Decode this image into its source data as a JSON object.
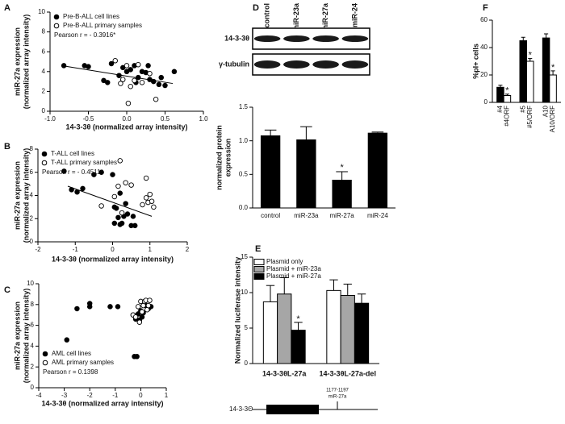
{
  "chart_data": [
    {
      "type": "scatter",
      "panel": "A",
      "xlabel": "14-3-3θ (normalized array intensity)",
      "ylabel": [
        "miR-27a expression",
        "(normalized array intensity)"
      ],
      "xlim": [
        -1,
        1
      ],
      "xticks": [
        {
          "value": -1,
          "label": "-1.0"
        },
        -0.5,
        {
          "value": 0,
          "label": "0.0"
        },
        0.5,
        {
          "value": 1,
          "label": "1.0"
        }
      ],
      "ylim": [
        0,
        10
      ],
      "yticks": [
        0,
        2,
        4,
        6,
        8,
        10
      ],
      "legend": "upper left",
      "annotation": "Pearson r = - 0.3916*",
      "series": [
        {
          "name": "Pre-B-ALL cell lines",
          "color": "#000000",
          "x": [
            -0.82,
            -0.55,
            -0.5,
            -0.3,
            -0.25,
            -0.1,
            -0.05,
            0.0,
            0.05,
            0.1,
            0.15,
            0.2,
            0.25,
            0.3,
            0.35,
            0.42,
            0.45,
            0.5,
            0.62,
            0.12,
            -0.2,
            0.28
          ],
          "y": [
            4.6,
            4.6,
            4.5,
            3.1,
            2.9,
            3.6,
            4.4,
            4.0,
            4.2,
            4.6,
            3.4,
            4.0,
            3.9,
            3.2,
            3.0,
            2.7,
            3.4,
            2.6,
            4.0,
            2.9,
            4.8,
            4.6
          ]
        },
        {
          "name": "Pre-B-ALL primary samples",
          "color": "#ffffff",
          "x": [
            -0.15,
            -0.05,
            0.0,
            0.02,
            0.1,
            0.05,
            0.15,
            0.2,
            0.38,
            0.3,
            -0.08
          ],
          "y": [
            5.1,
            3.2,
            4.6,
            0.8,
            3.1,
            2.5,
            4.7,
            2.9,
            1.2,
            3.8,
            2.8
          ]
        }
      ],
      "fit": {
        "x": [
          -0.85,
          0.6
        ],
        "y": [
          4.6,
          2.8
        ]
      }
    },
    {
      "type": "scatter",
      "panel": "B",
      "xlabel": "14-3-3θ (normalized array intensity)",
      "ylabel": [
        "miR-27a expression",
        "(normalized array intensity)"
      ],
      "xlim": [
        -2,
        2
      ],
      "xticks": [
        -2,
        -1,
        0,
        1,
        2
      ],
      "ylim": [
        0,
        8
      ],
      "yticks": [
        0,
        2,
        4,
        6,
        8
      ],
      "legend": "upper left",
      "annotation": "Pearson r = - 0.4511*",
      "series": [
        {
          "name": "T-ALL cell lines",
          "color": "#000000",
          "x": [
            -1.3,
            -1.1,
            -0.95,
            -0.8,
            -0.5,
            -0.3,
            0.0,
            0.05,
            0.1,
            0.15,
            0.2,
            0.25,
            0.3,
            0.35,
            0.4,
            0.5,
            0.6,
            0.05,
            0.55,
            0.2
          ],
          "y": [
            6.1,
            4.5,
            4.3,
            4.6,
            5.8,
            6.0,
            5.8,
            3.0,
            2.9,
            2.1,
            1.5,
            1.6,
            2.2,
            3.3,
            2.4,
            1.4,
            1.4,
            1.6,
            2.2,
            4.2
          ]
        },
        {
          "name": "T-ALL primary samples",
          "color": "#ffffff",
          "x": [
            -0.3,
            0.2,
            0.05,
            0.35,
            0.5,
            0.15,
            0.8,
            0.9,
            0.95,
            1.0,
            1.05,
            1.1,
            0.25,
            0.9
          ],
          "y": [
            3.1,
            7.0,
            3.9,
            5.1,
            4.9,
            4.8,
            3.2,
            3.8,
            3.4,
            4.1,
            3.5,
            3.0,
            2.5,
            5.5
          ]
        }
      ],
      "fit": {
        "x": [
          -1.2,
          1.05
        ],
        "y": [
          4.8,
          2.2
        ]
      }
    },
    {
      "type": "scatter",
      "panel": "C",
      "xlabel": "14-3-3θ (normalized array intensity)",
      "ylabel": [
        "miR-27a expression",
        "(normalized array intensity)"
      ],
      "xlim": [
        -4,
        1
      ],
      "xticks": [
        -4,
        -3,
        -2,
        -1,
        0,
        1
      ],
      "ylim": [
        0,
        10
      ],
      "yticks": [
        0,
        2,
        4,
        6,
        8,
        10
      ],
      "legend": "lower left",
      "annotation": "Pearson r = 0.1398",
      "series": [
        {
          "name": "AML cell lines",
          "color": "#000000",
          "x": [
            -2.9,
            -2.5,
            -2.0,
            -2.0,
            -1.2,
            -0.9,
            -0.3,
            -0.2,
            -0.25,
            -0.15,
            -0.2,
            -0.1,
            0.0,
            0.1,
            0.2,
            0.3,
            0.4,
            0.05,
            -0.05
          ],
          "y": [
            4.6,
            7.6,
            7.8,
            8.1,
            7.8,
            7.8,
            7.0,
            6.9,
            3.0,
            3.0,
            6.6,
            7.1,
            7.4,
            7.2,
            7.9,
            7.6,
            7.8,
            6.8,
            6.5
          ]
        },
        {
          "name": "AML primary samples",
          "color": "#ffffff",
          "x": [
            -0.3,
            -0.1,
            0.0,
            0.1,
            0.15,
            0.2,
            0.25,
            0.3,
            0.35,
            -0.2,
            0.05,
            -0.05
          ],
          "y": [
            7.0,
            7.8,
            8.3,
            7.9,
            8.3,
            8.4,
            7.5,
            7.9,
            8.4,
            6.8,
            7.3,
            6.3
          ]
        }
      ]
    },
    {
      "type": "bar",
      "panel": "D",
      "ylabel": [
        "normalized protein",
        "expression"
      ],
      "blot": {
        "lanes": [
          "control",
          "miR-23a",
          "miR-27a",
          "miR-24"
        ],
        "rows": [
          "14-3-3θ",
          "γ-tubulin"
        ]
      },
      "categories": [
        "control",
        "miR-23a",
        "miR-27a",
        "miR-24"
      ],
      "values": [
        1.08,
        1.02,
        0.42,
        1.12
      ],
      "errors": [
        0.08,
        0.19,
        0.12,
        0.01
      ],
      "color": "#000000",
      "ylim": [
        0,
        1.5
      ],
      "yticks": [
        {
          "value": 0,
          "label": "0.0"
        },
        0.5,
        {
          "value": 1,
          "label": "1.0"
        },
        1.5
      ],
      "annotations": [
        {
          "text": "*",
          "index": 2
        }
      ]
    },
    {
      "type": "grouped-bar",
      "panel": "E",
      "ylabel": [
        "Normalized luciferase intensity"
      ],
      "categories": [
        "14-3-3θL-27a",
        "14-3-3θL-27a-del"
      ],
      "series": [
        {
          "name": "Plasmid only",
          "color": "#ffffff",
          "values": [
            8.7,
            10.3
          ],
          "errors": [
            2.3,
            1.5
          ]
        },
        {
          "name": "Plasmid + miR-23a",
          "color": "#a6a6a6",
          "values": [
            9.8,
            9.6
          ],
          "errors": [
            2.3,
            1.6
          ]
        },
        {
          "name": "Plasmid + miR-27a",
          "color": "#000000",
          "values": [
            4.7,
            8.5
          ],
          "errors": [
            1.1,
            1.3
          ]
        }
      ],
      "ylim": [
        0,
        15
      ],
      "yticks": [
        0,
        5,
        10,
        15
      ],
      "legend": "upper left",
      "annotations": [
        {
          "text": "*",
          "series": 2,
          "index": 0
        }
      ],
      "diagram": {
        "gene": "14-3-3Θ",
        "site": "1177-1197",
        "mirna": "miR-27a"
      }
    },
    {
      "type": "paired-bar",
      "panel": "F",
      "ylabel": [
        "%pI+ cells"
      ],
      "categories": [
        "#4",
        "#4ORF",
        "#5",
        "#5/ORF",
        "A10",
        "A10/ORF"
      ],
      "values": [
        11,
        5,
        45,
        30,
        47,
        20
      ],
      "errors": [
        1.5,
        1,
        2.5,
        2,
        3,
        3
      ],
      "colors": [
        "#000000",
        "#ffffff",
        "#000000",
        "#ffffff",
        "#000000",
        "#ffffff"
      ],
      "ylim": [
        0,
        60
      ],
      "yticks": [
        0,
        20,
        40,
        60
      ],
      "annotations": [
        {
          "text": "*",
          "index": 1
        },
        {
          "text": "*",
          "index": 3
        },
        {
          "text": "*",
          "index": 5
        }
      ]
    }
  ]
}
